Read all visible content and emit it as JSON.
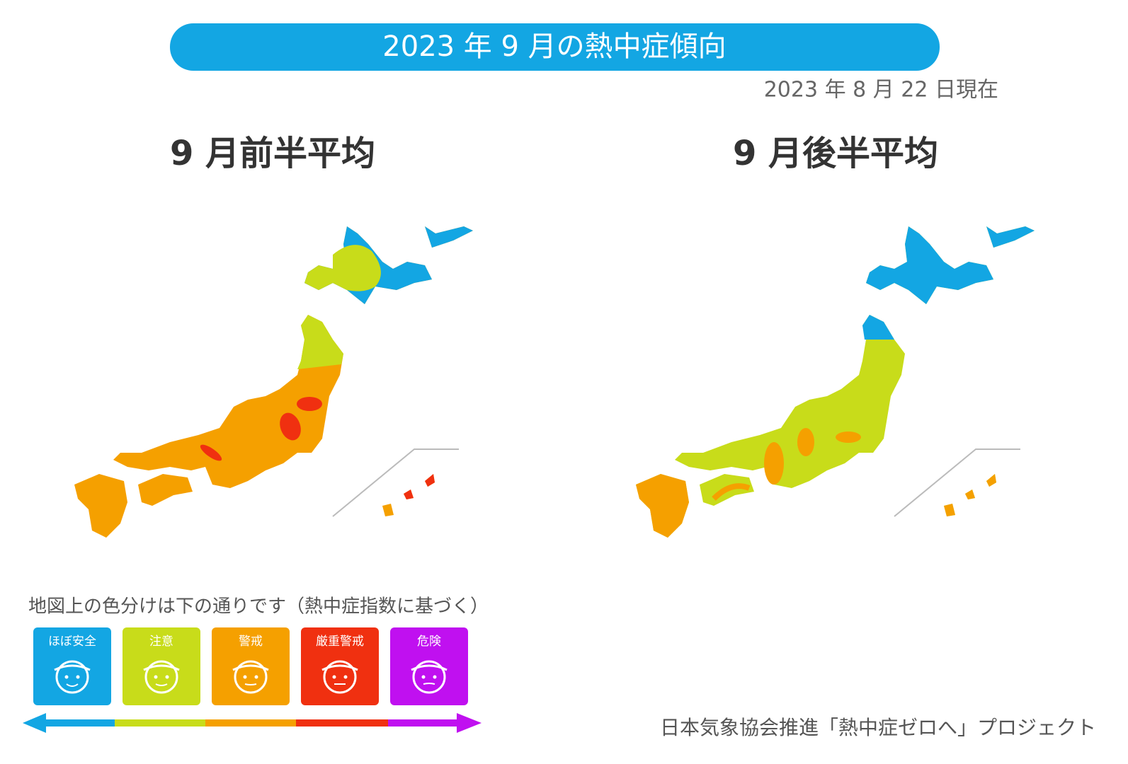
{
  "header": {
    "title": "2023 年 9 月の熱中症傾向",
    "date": "2023 年 8 月 22 日現在"
  },
  "maps": [
    {
      "title": "9 月前半平均"
    },
    {
      "title": "9 月後半平均"
    }
  ],
  "legend": {
    "caption": "地図上の色分けは下の通りです（熱中症指数に基づく）",
    "items": [
      {
        "label": "ほぼ安全"
      },
      {
        "label": "注意"
      },
      {
        "label": "警戒"
      },
      {
        "label": "厳重警戒"
      },
      {
        "label": "危険"
      }
    ]
  },
  "footer": "日本気象協会推進「熱中症ゼロへ」プロジェクト"
}
